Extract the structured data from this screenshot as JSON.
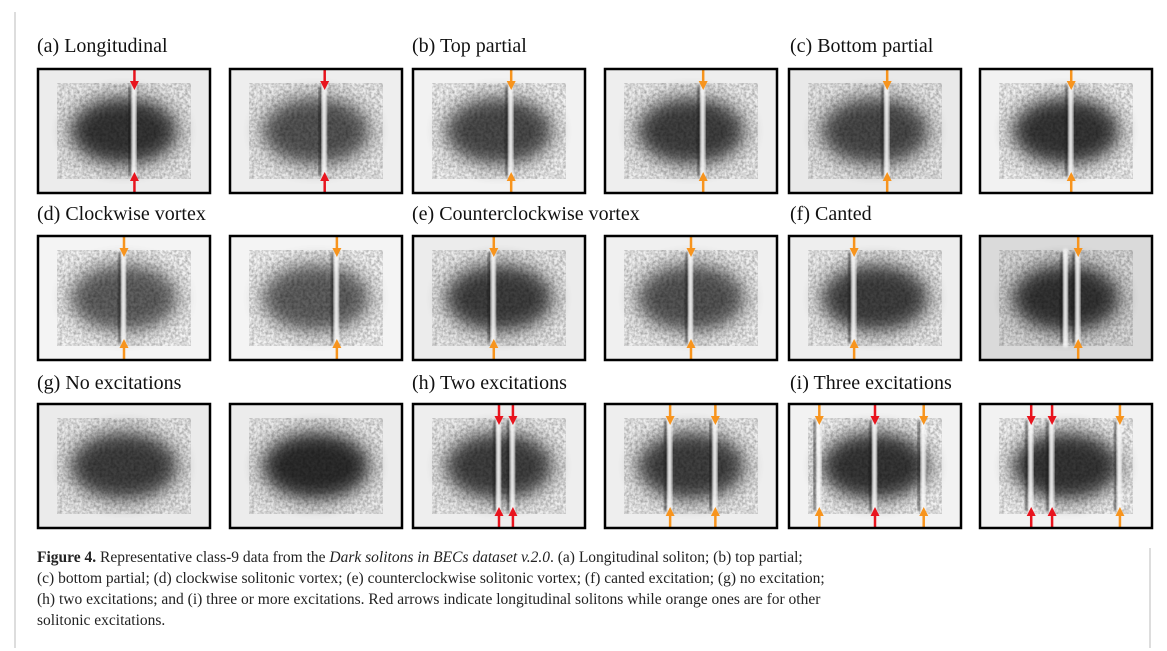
{
  "panels": [
    {
      "label": "(a) Longitudinal"
    },
    {
      "label": "(b) Top partial"
    },
    {
      "label": "(c) Bottom partial"
    },
    {
      "label": "(d) Clockwise vortex"
    },
    {
      "label": "(e) Counterclockwise vortex"
    },
    {
      "label": "(f) Canted"
    },
    {
      "label": "(g) No excitations"
    },
    {
      "label": "(h) Two excitations"
    },
    {
      "label": "(i) Three excitations"
    }
  ],
  "caption": {
    "label": "Figure 4.",
    "intro": " Representative class-9 data from the ",
    "dataset": "Dark solitons in BECs dataset v.2.0",
    "line1_rest": ". (a) Longitudinal soliton; (b) top partial;",
    "lines": [
      "(c) bottom partial; (d) clockwise solitonic vortex; (e) counterclockwise solitonic vortex; (f) canted excitation; (g) no excitation;",
      "(h) two excitations; and (i) three or more excitations. Red arrows indicate longitudinal solitons while orange ones are for other",
      "solitonic excitations."
    ]
  }
}
